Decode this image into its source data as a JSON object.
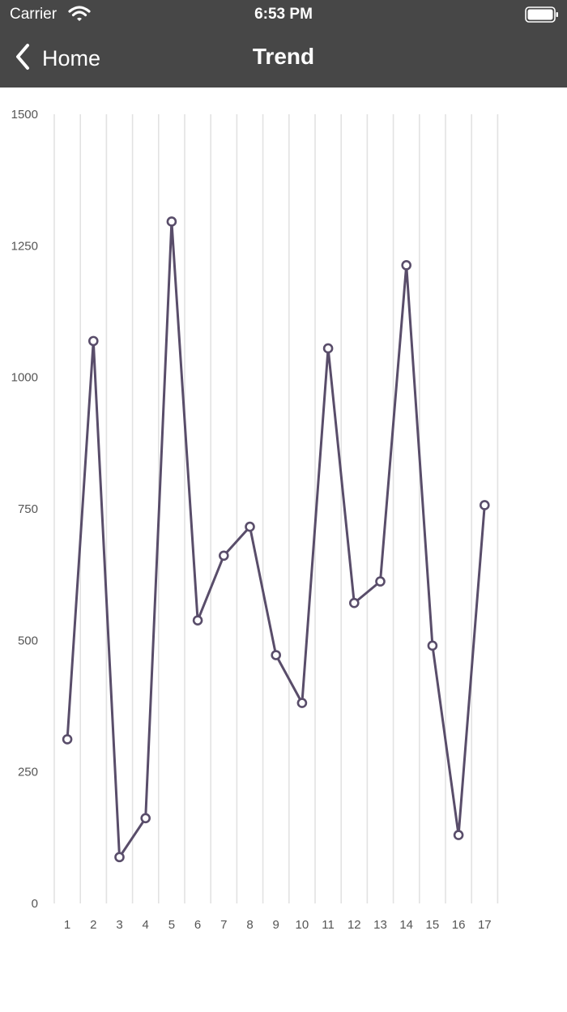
{
  "status_bar": {
    "carrier": "Carrier",
    "time": "6:53 PM"
  },
  "nav": {
    "back_label": "Home",
    "title": "Trend"
  },
  "colors": {
    "bar_bg": "#474747",
    "line": "#594d6a",
    "grid": "#e2e2e2",
    "tick": "#555555"
  },
  "chart_data": {
    "type": "line",
    "x": [
      1,
      2,
      3,
      4,
      5,
      6,
      7,
      8,
      9,
      10,
      11,
      12,
      13,
      14,
      15,
      16,
      17
    ],
    "series": [
      {
        "values": [
          312,
          1069,
          88,
          162,
          1296,
          538,
          661,
          716,
          472,
          381,
          1055,
          571,
          612,
          1213,
          490,
          130,
          757
        ]
      }
    ],
    "y_ticks": [
      0,
      250,
      500,
      750,
      1000,
      1250,
      1500
    ],
    "ylim": [
      0,
      1500
    ],
    "grid": "vertical",
    "markers": "hollow-circle"
  }
}
